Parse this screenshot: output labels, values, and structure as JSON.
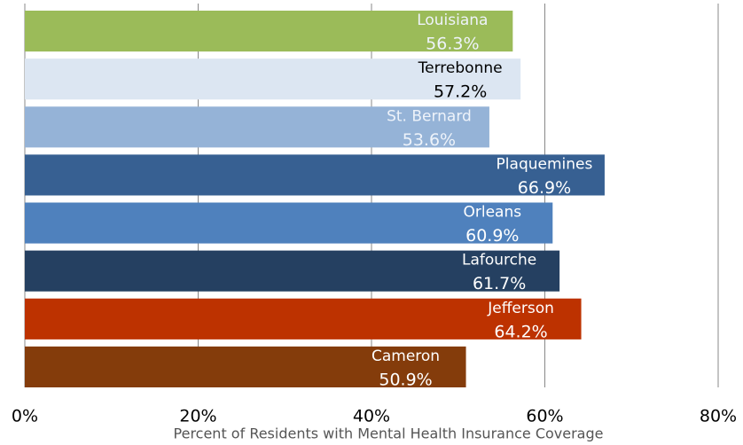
{
  "chart_data": {
    "type": "barh",
    "x_label": "Percent of Residents with Mental Health Insurance Coverage",
    "categories": [
      "Louisiana",
      "Terrebonne",
      "St. Bernard",
      "Plaquemines",
      "Orleans",
      "Lafourche",
      "Jefferson",
      "Cameron"
    ],
    "values": [
      56.3,
      57.2,
      53.6,
      66.9,
      60.9,
      61.7,
      64.2,
      50.9
    ],
    "value_labels": [
      "56.3%",
      "57.2%",
      "53.6%",
      "66.9%",
      "60.9%",
      "61.7%",
      "64.2%",
      "50.9%"
    ],
    "colors": [
      "#9bbb59",
      "#dce6f2",
      "#95b3d7",
      "#376092",
      "#4f81bd",
      "#254061",
      "#bd3200",
      "#843c0b"
    ],
    "xlim": [
      0,
      80
    ],
    "xticks": [
      {
        "value": 0,
        "label": "0%"
      },
      {
        "value": 20,
        "label": "20%"
      },
      {
        "value": 40,
        "label": "40%"
      },
      {
        "value": 60,
        "label": "60%"
      },
      {
        "value": 80,
        "label": "80%"
      }
    ],
    "grid": true
  }
}
